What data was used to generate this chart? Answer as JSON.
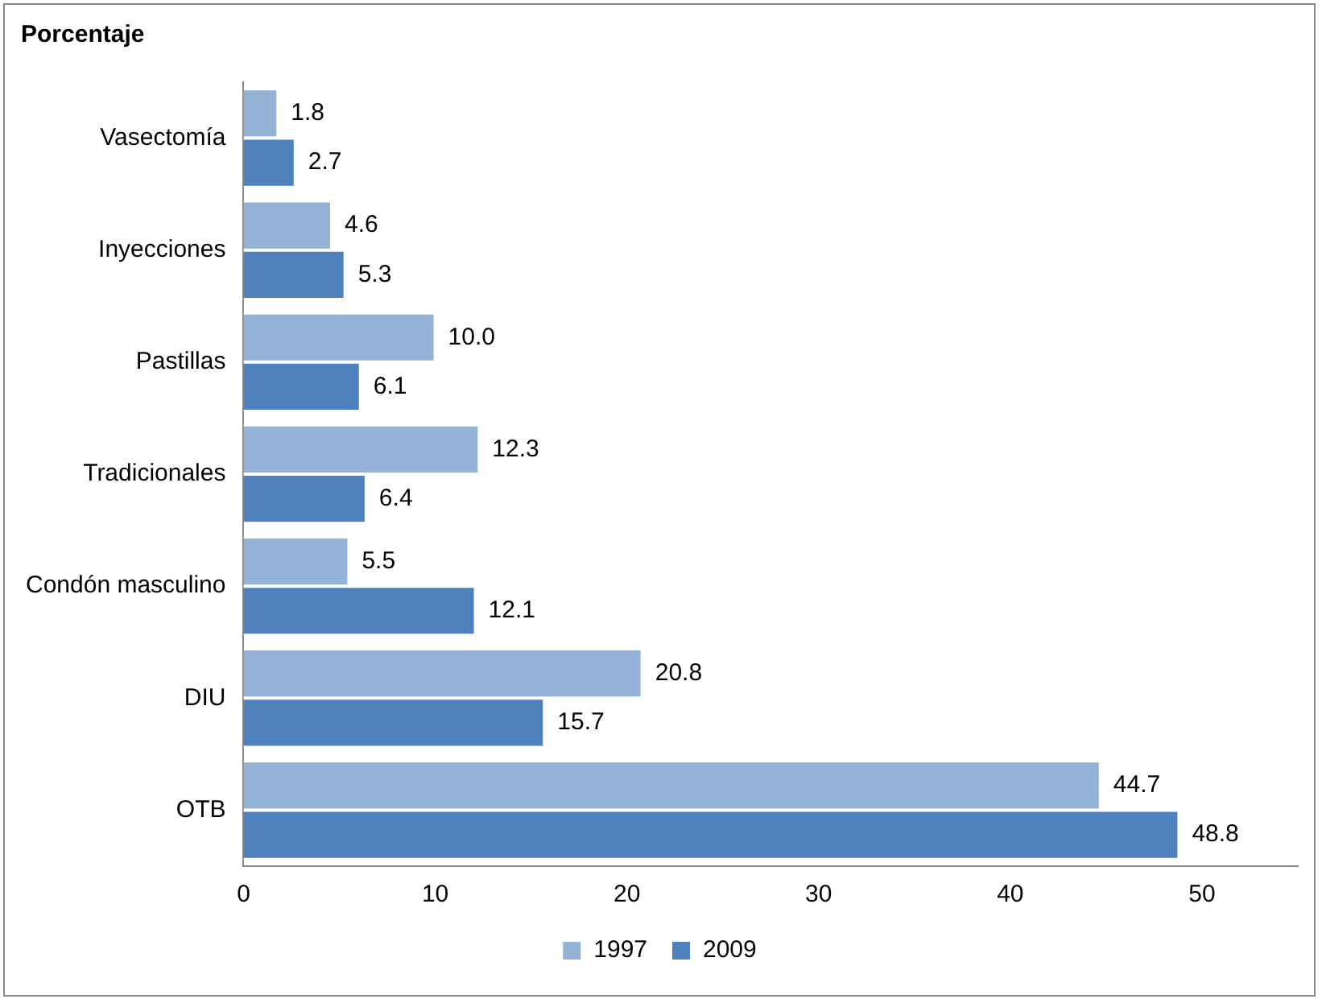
{
  "chart_data": {
    "type": "bar",
    "orientation": "horizontal",
    "title": "Porcentaje",
    "categories": [
      "Vasectomía",
      "Inyecciones",
      "Pastillas",
      "Tradicionales",
      "Condón masculino",
      "DIU",
      "OTB"
    ],
    "series": [
      {
        "name": "1997",
        "color": "#95b3d7",
        "values": [
          1.8,
          4.6,
          10.0,
          12.3,
          5.5,
          20.8,
          44.7
        ],
        "value_labels": [
          "1.8",
          "4.6",
          "10.0",
          "12.3",
          "5.5",
          "20.8",
          "44.7"
        ]
      },
      {
        "name": "2009",
        "color": "#4f81bd",
        "values": [
          2.7,
          5.3,
          6.1,
          6.4,
          12.1,
          15.7,
          48.8
        ],
        "value_labels": [
          "2.7",
          "5.3",
          "6.1",
          "6.4",
          "12.1",
          "15.7",
          "48.8"
        ]
      }
    ],
    "xlim": [
      0,
      55
    ],
    "xticks": [
      0,
      10,
      20,
      30,
      40,
      50
    ],
    "grid": false,
    "legend": "bottom"
  }
}
